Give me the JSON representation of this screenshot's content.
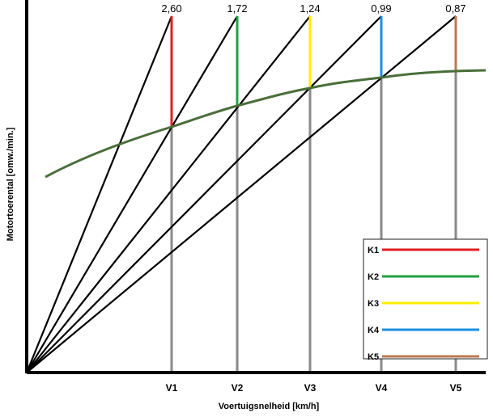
{
  "chart_data": {
    "type": "line",
    "xlabel": "Voertuigsnelheid [km/h]",
    "ylabel": "Motortoerental [omw./min.]",
    "speed_ticks": [
      "V1",
      "V2",
      "V3",
      "V4",
      "V5"
    ],
    "gears": [
      {
        "name": "K1",
        "ratio": "2,60",
        "color": "#e02020"
      },
      {
        "name": "K2",
        "ratio": "1,72",
        "color": "#20a040"
      },
      {
        "name": "K3",
        "ratio": "1,24",
        "color": "#ffee00"
      },
      {
        "name": "K4",
        "ratio": "0,99",
        "color": "#1890e0"
      },
      {
        "name": "K5",
        "ratio": "0,87",
        "color": "#b87a50"
      }
    ],
    "curve_color": "#4a6e3a",
    "legend_position": "bottom-right"
  }
}
